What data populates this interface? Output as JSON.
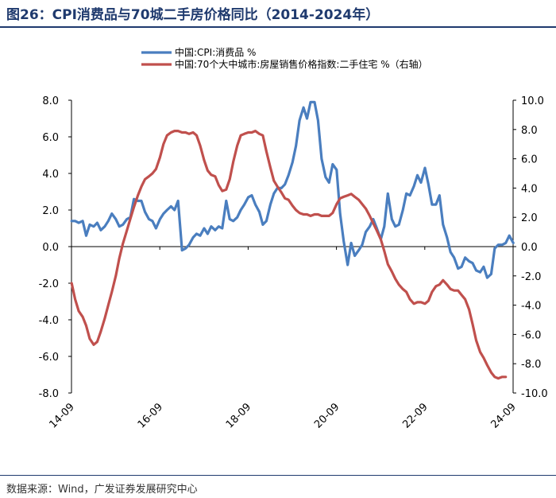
{
  "header": {
    "title": "图26：CPI消费品与70城二手房价格同比（2014-2024年）"
  },
  "footer": {
    "source": "数据来源：Wind，广发证券发展研究中心"
  },
  "colors": {
    "cpi": "#4a7ebf",
    "house": "#c0504d",
    "title": "#1f3a6e"
  },
  "chart_data": {
    "type": "line",
    "title": "CPI消费品与70城二手房价格同比（2014-2024年）",
    "x_ticks": [
      "14-09",
      "16-09",
      "18-09",
      "20-09",
      "22-09",
      "24-09"
    ],
    "x_range": [
      2014.667,
      2024.667
    ],
    "y_left": {
      "ticks": [
        "8.0",
        "6.0",
        "4.0",
        "2.0",
        "0.0",
        "-2.0",
        "-4.0",
        "-6.0",
        "-8.0"
      ],
      "range": [
        -8,
        8
      ]
    },
    "y_right": {
      "ticks": [
        "10.0",
        "8.0",
        "6.0",
        "4.0",
        "2.0",
        "0.0",
        "-2.0",
        "-4.0",
        "-6.0",
        "-8.0",
        "-10.0"
      ],
      "range": [
        -10,
        10
      ]
    },
    "legend": [
      "中国:CPI:消费品 %",
      "中国:70个大中城市:房屋销售价格指数:二手住宅 %（右轴）"
    ],
    "series": [
      {
        "name": "中国:CPI:消费品 %",
        "axis": "left",
        "points": [
          [
            2014.67,
            1.4
          ],
          [
            2014.75,
            1.4
          ],
          [
            2014.83,
            1.3
          ],
          [
            2014.92,
            1.4
          ],
          [
            2015.0,
            0.6
          ],
          [
            2015.08,
            1.2
          ],
          [
            2015.17,
            1.1
          ],
          [
            2015.25,
            1.3
          ],
          [
            2015.33,
            0.9
          ],
          [
            2015.42,
            1.1
          ],
          [
            2015.5,
            1.4
          ],
          [
            2015.58,
            1.8
          ],
          [
            2015.67,
            1.5
          ],
          [
            2015.75,
            1.1
          ],
          [
            2015.83,
            1.2
          ],
          [
            2015.92,
            1.5
          ],
          [
            2016.0,
            1.6
          ],
          [
            2016.08,
            2.6
          ],
          [
            2016.17,
            2.5
          ],
          [
            2016.25,
            2.5
          ],
          [
            2016.33,
            1.9
          ],
          [
            2016.42,
            1.5
          ],
          [
            2016.5,
            1.4
          ],
          [
            2016.58,
            1.0
          ],
          [
            2016.67,
            1.5
          ],
          [
            2016.75,
            1.8
          ],
          [
            2016.83,
            2.0
          ],
          [
            2016.92,
            2.2
          ],
          [
            2017.0,
            2.0
          ],
          [
            2017.08,
            2.5
          ],
          [
            2017.17,
            -0.2
          ],
          [
            2017.25,
            -0.1
          ],
          [
            2017.33,
            0.1
          ],
          [
            2017.42,
            0.5
          ],
          [
            2017.5,
            0.7
          ],
          [
            2017.58,
            0.6
          ],
          [
            2017.67,
            1.0
          ],
          [
            2017.75,
            0.7
          ],
          [
            2017.83,
            1.1
          ],
          [
            2017.92,
            0.9
          ],
          [
            2018.0,
            1.1
          ],
          [
            2018.08,
            1.0
          ],
          [
            2018.17,
            2.5
          ],
          [
            2018.25,
            1.5
          ],
          [
            2018.33,
            1.4
          ],
          [
            2018.42,
            1.6
          ],
          [
            2018.5,
            2.0
          ],
          [
            2018.58,
            2.3
          ],
          [
            2018.67,
            2.7
          ],
          [
            2018.75,
            2.8
          ],
          [
            2018.83,
            2.3
          ],
          [
            2018.92,
            1.9
          ],
          [
            2019.0,
            1.2
          ],
          [
            2019.08,
            1.4
          ],
          [
            2019.17,
            2.3
          ],
          [
            2019.25,
            2.9
          ],
          [
            2019.33,
            3.2
          ],
          [
            2019.42,
            3.2
          ],
          [
            2019.5,
            3.4
          ],
          [
            2019.58,
            3.9
          ],
          [
            2019.67,
            4.6
          ],
          [
            2019.75,
            5.5
          ],
          [
            2019.83,
            6.9
          ],
          [
            2019.92,
            7.6
          ],
          [
            2020.0,
            7.0
          ],
          [
            2020.08,
            7.9
          ],
          [
            2020.17,
            7.9
          ],
          [
            2020.25,
            6.9
          ],
          [
            2020.33,
            4.8
          ],
          [
            2020.42,
            3.8
          ],
          [
            2020.5,
            3.5
          ],
          [
            2020.58,
            4.5
          ],
          [
            2020.67,
            4.2
          ],
          [
            2020.75,
            1.8
          ],
          [
            2020.83,
            0.3
          ],
          [
            2020.92,
            -1.0
          ],
          [
            2021.0,
            0.2
          ],
          [
            2021.08,
            -0.5
          ],
          [
            2021.17,
            -0.2
          ],
          [
            2021.25,
            0.1
          ],
          [
            2021.33,
            0.8
          ],
          [
            2021.42,
            1.1
          ],
          [
            2021.5,
            1.5
          ],
          [
            2021.58,
            1.0
          ],
          [
            2021.67,
            0.4
          ],
          [
            2021.75,
            1.1
          ],
          [
            2021.83,
            2.9
          ],
          [
            2021.92,
            1.5
          ],
          [
            2022.0,
            1.1
          ],
          [
            2022.08,
            1.2
          ],
          [
            2022.17,
            2.0
          ],
          [
            2022.25,
            2.9
          ],
          [
            2022.33,
            2.8
          ],
          [
            2022.42,
            3.3
          ],
          [
            2022.5,
            3.9
          ],
          [
            2022.58,
            3.5
          ],
          [
            2022.67,
            4.3
          ],
          [
            2022.75,
            3.4
          ],
          [
            2022.83,
            2.3
          ],
          [
            2022.92,
            2.3
          ],
          [
            2023.0,
            2.8
          ],
          [
            2023.08,
            1.2
          ],
          [
            2023.17,
            0.5
          ],
          [
            2023.25,
            -0.3
          ],
          [
            2023.33,
            -0.6
          ],
          [
            2023.42,
            -1.2
          ],
          [
            2023.5,
            -1.1
          ],
          [
            2023.58,
            -0.6
          ],
          [
            2023.67,
            -0.8
          ],
          [
            2023.75,
            -0.9
          ],
          [
            2023.83,
            -1.3
          ],
          [
            2023.92,
            -1.4
          ],
          [
            2024.0,
            -1.1
          ],
          [
            2024.08,
            -1.7
          ],
          [
            2024.17,
            -1.5
          ],
          [
            2024.25,
            -0.1
          ],
          [
            2024.33,
            0.1
          ],
          [
            2024.42,
            0.1
          ],
          [
            2024.5,
            0.2
          ],
          [
            2024.58,
            0.6
          ],
          [
            2024.67,
            0.2
          ]
        ]
      },
      {
        "name": "中国:70个大中城市:房屋销售价格指数:二手住宅 %",
        "axis": "right",
        "points": [
          [
            2014.67,
            -2.5
          ],
          [
            2014.75,
            -3.6
          ],
          [
            2014.83,
            -4.4
          ],
          [
            2014.92,
            -4.8
          ],
          [
            2015.0,
            -5.4
          ],
          [
            2015.08,
            -6.3
          ],
          [
            2015.17,
            -6.7
          ],
          [
            2015.25,
            -6.5
          ],
          [
            2015.33,
            -5.8
          ],
          [
            2015.42,
            -4.9
          ],
          [
            2015.5,
            -4.0
          ],
          [
            2015.58,
            -3.1
          ],
          [
            2015.67,
            -2.0
          ],
          [
            2015.75,
            -0.8
          ],
          [
            2015.83,
            0.2
          ],
          [
            2015.92,
            1.1
          ],
          [
            2016.0,
            1.9
          ],
          [
            2016.08,
            2.7
          ],
          [
            2016.17,
            3.5
          ],
          [
            2016.25,
            4.1
          ],
          [
            2016.33,
            4.6
          ],
          [
            2016.42,
            4.8
          ],
          [
            2016.5,
            5.0
          ],
          [
            2016.58,
            5.3
          ],
          [
            2016.67,
            6.1
          ],
          [
            2016.75,
            7.0
          ],
          [
            2016.83,
            7.6
          ],
          [
            2016.92,
            7.8
          ],
          [
            2017.0,
            7.9
          ],
          [
            2017.08,
            7.9
          ],
          [
            2017.17,
            7.8
          ],
          [
            2017.25,
            7.8
          ],
          [
            2017.33,
            7.7
          ],
          [
            2017.42,
            7.8
          ],
          [
            2017.5,
            7.6
          ],
          [
            2017.58,
            6.9
          ],
          [
            2017.67,
            5.9
          ],
          [
            2017.75,
            5.2
          ],
          [
            2017.83,
            4.9
          ],
          [
            2017.92,
            4.8
          ],
          [
            2018.0,
            4.2
          ],
          [
            2018.08,
            3.8
          ],
          [
            2018.17,
            3.9
          ],
          [
            2018.25,
            4.6
          ],
          [
            2018.33,
            5.8
          ],
          [
            2018.42,
            6.9
          ],
          [
            2018.5,
            7.6
          ],
          [
            2018.58,
            7.7
          ],
          [
            2018.67,
            7.8
          ],
          [
            2018.75,
            7.8
          ],
          [
            2018.83,
            7.9
          ],
          [
            2018.92,
            7.7
          ],
          [
            2019.0,
            7.6
          ],
          [
            2019.08,
            6.5
          ],
          [
            2019.17,
            5.4
          ],
          [
            2019.25,
            4.5
          ],
          [
            2019.33,
            4.1
          ],
          [
            2019.42,
            3.7
          ],
          [
            2019.5,
            3.3
          ],
          [
            2019.58,
            3.2
          ],
          [
            2019.67,
            2.8
          ],
          [
            2019.75,
            2.5
          ],
          [
            2019.83,
            2.3
          ],
          [
            2019.92,
            2.2
          ],
          [
            2020.0,
            2.2
          ],
          [
            2020.08,
            2.1
          ],
          [
            2020.17,
            2.2
          ],
          [
            2020.25,
            2.2
          ],
          [
            2020.33,
            2.1
          ],
          [
            2020.42,
            2.1
          ],
          [
            2020.5,
            2.1
          ],
          [
            2020.58,
            2.3
          ],
          [
            2020.67,
            2.9
          ],
          [
            2020.75,
            3.3
          ],
          [
            2020.83,
            3.4
          ],
          [
            2020.92,
            3.5
          ],
          [
            2021.0,
            3.6
          ],
          [
            2021.08,
            3.4
          ],
          [
            2021.17,
            3.2
          ],
          [
            2021.25,
            2.9
          ],
          [
            2021.33,
            2.6
          ],
          [
            2021.42,
            2.1
          ],
          [
            2021.5,
            1.6
          ],
          [
            2021.58,
            1.1
          ],
          [
            2021.67,
            0.5
          ],
          [
            2021.75,
            -0.3
          ],
          [
            2021.83,
            -1.2
          ],
          [
            2021.92,
            -1.7
          ],
          [
            2022.0,
            -2.2
          ],
          [
            2022.08,
            -2.6
          ],
          [
            2022.17,
            -2.9
          ],
          [
            2022.25,
            -3.1
          ],
          [
            2022.33,
            -3.6
          ],
          [
            2022.42,
            -3.9
          ],
          [
            2022.5,
            -3.8
          ],
          [
            2022.58,
            -3.8
          ],
          [
            2022.67,
            -3.9
          ],
          [
            2022.75,
            -3.7
          ],
          [
            2022.83,
            -3.1
          ],
          [
            2022.92,
            -2.7
          ],
          [
            2023.0,
            -2.6
          ],
          [
            2023.08,
            -2.3
          ],
          [
            2023.17,
            -2.6
          ],
          [
            2023.25,
            -2.9
          ],
          [
            2023.33,
            -3.0
          ],
          [
            2023.42,
            -3.0
          ],
          [
            2023.5,
            -3.3
          ],
          [
            2023.58,
            -3.6
          ],
          [
            2023.67,
            -4.3
          ],
          [
            2023.75,
            -5.3
          ],
          [
            2023.83,
            -6.4
          ],
          [
            2023.92,
            -7.2
          ],
          [
            2024.0,
            -7.6
          ],
          [
            2024.08,
            -8.1
          ],
          [
            2024.17,
            -8.6
          ],
          [
            2024.25,
            -8.9
          ],
          [
            2024.33,
            -9.0
          ],
          [
            2024.42,
            -8.9
          ],
          [
            2024.5,
            -8.9
          ]
        ]
      }
    ]
  }
}
